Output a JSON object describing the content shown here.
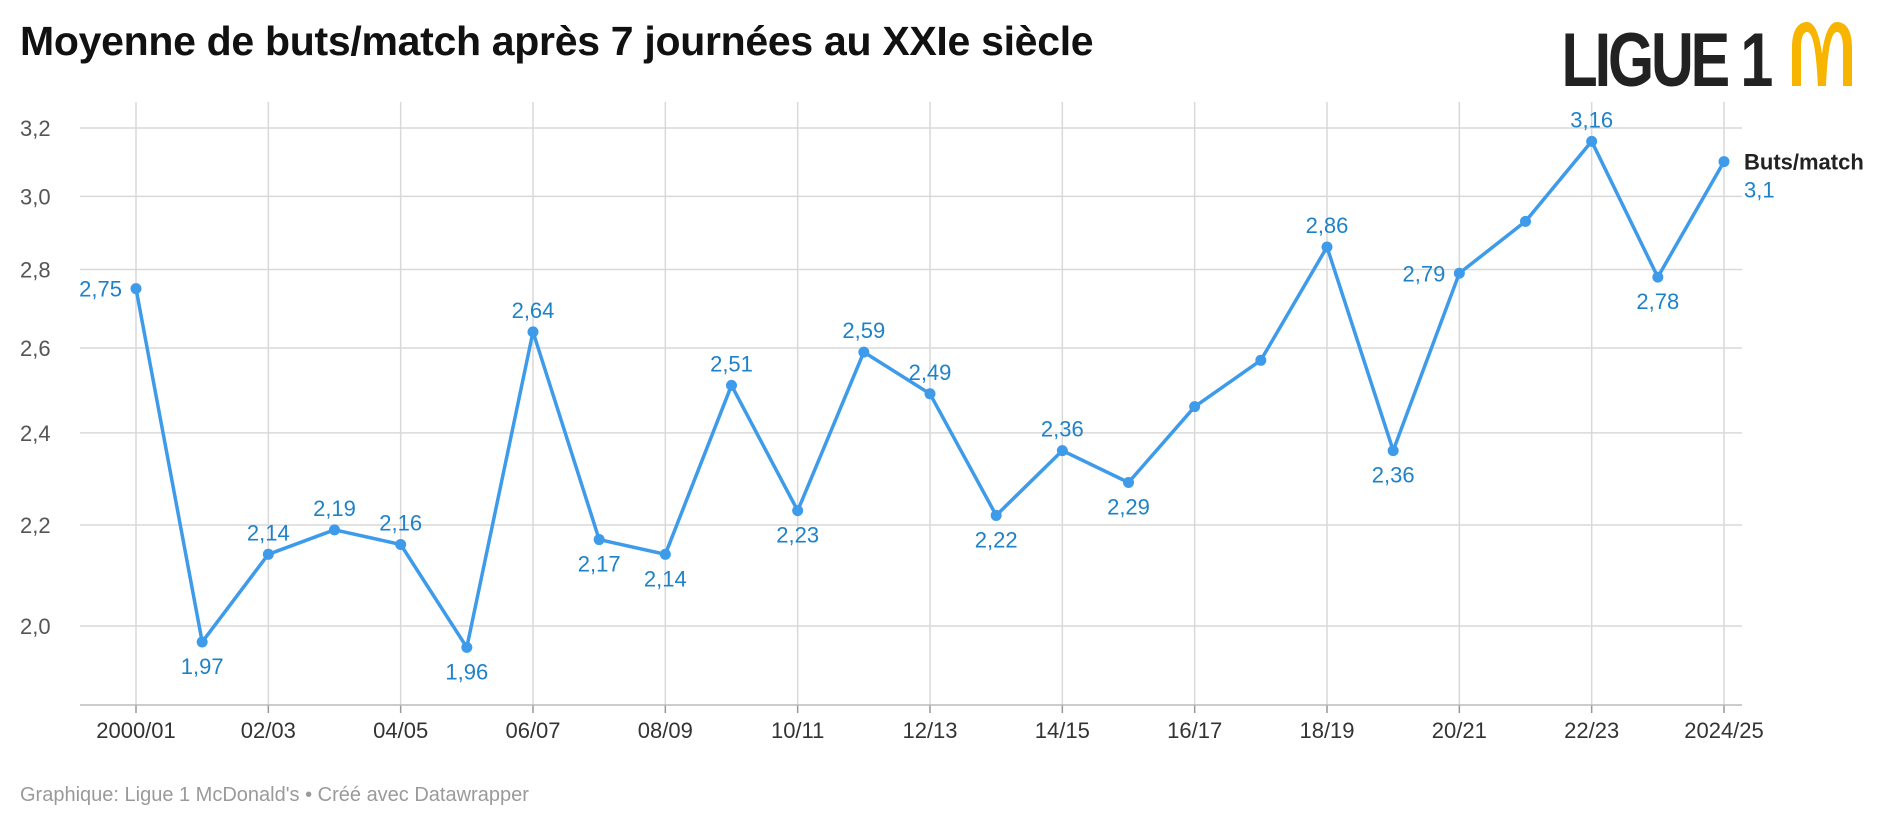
{
  "header": {
    "title": "Moyenne de buts/match après 7 journées au XXIe siècle",
    "logo_text": "LIGUE 1",
    "logo_sponsor": "McDonald's"
  },
  "footer": {
    "source": "Graphique: Ligue 1 McDonald's • Créé avec Datawrapper"
  },
  "colors": {
    "line": "#3d9be9",
    "label": "#1e82c8",
    "grid": "#d9d9d9",
    "axis_text": "#555555",
    "title": "#111111",
    "logo_dark": "#222222",
    "logo_yellow": "#f7b500"
  },
  "chart_data": {
    "type": "line",
    "title": "Moyenne de buts/match après 7 journées au XXIe siècle",
    "xlabel": "",
    "ylabel": "",
    "yscale": "log",
    "ylim": [
      1.9,
      3.25
    ],
    "yticks": [
      2.0,
      2.2,
      2.4,
      2.6,
      2.8,
      3.0,
      3.2
    ],
    "ytick_labels": [
      "2,0",
      "2,2",
      "2,4",
      "2,6",
      "2,8",
      "3,0",
      "3,2"
    ],
    "grid": true,
    "legend_position": "right-end-label",
    "x": [
      "2000/01",
      "01/02",
      "02/03",
      "03/04",
      "04/05",
      "05/06",
      "06/07",
      "07/08",
      "08/09",
      "09/10",
      "10/11",
      "11/12",
      "12/13",
      "13/14",
      "14/15",
      "15/16",
      "16/17",
      "17/18",
      "18/19",
      "19/20",
      "20/21",
      "21/22",
      "22/23",
      "23/24",
      "2024/25"
    ],
    "xtick_labels": [
      "2000/01",
      "02/03",
      "04/05",
      "06/07",
      "08/09",
      "10/11",
      "12/13",
      "14/15",
      "16/17",
      "18/19",
      "20/21",
      "22/23",
      "2024/25"
    ],
    "series": [
      {
        "name": "Buts/match",
        "values": [
          2.75,
          1.97,
          2.14,
          2.19,
          2.16,
          1.96,
          2.64,
          2.17,
          2.14,
          2.51,
          2.23,
          2.59,
          2.49,
          2.22,
          2.36,
          2.29,
          2.46,
          2.57,
          2.86,
          2.36,
          2.79,
          2.93,
          3.16,
          2.78,
          3.1
        ]
      }
    ],
    "annotations": [
      {
        "index": 0,
        "text": "2,75",
        "pos": "left"
      },
      {
        "index": 1,
        "text": "1,97",
        "pos": "below"
      },
      {
        "index": 2,
        "text": "2,14",
        "pos": "above"
      },
      {
        "index": 3,
        "text": "2,19",
        "pos": "above"
      },
      {
        "index": 4,
        "text": "2,16",
        "pos": "above"
      },
      {
        "index": 5,
        "text": "1,96",
        "pos": "below"
      },
      {
        "index": 6,
        "text": "2,64",
        "pos": "above"
      },
      {
        "index": 7,
        "text": "2,17",
        "pos": "below"
      },
      {
        "index": 8,
        "text": "2,14",
        "pos": "below"
      },
      {
        "index": 9,
        "text": "2,51",
        "pos": "above"
      },
      {
        "index": 10,
        "text": "2,23",
        "pos": "below"
      },
      {
        "index": 11,
        "text": "2,59",
        "pos": "above"
      },
      {
        "index": 12,
        "text": "2,49",
        "pos": "above"
      },
      {
        "index": 13,
        "text": "2,22",
        "pos": "below"
      },
      {
        "index": 14,
        "text": "2,36",
        "pos": "above"
      },
      {
        "index": 15,
        "text": "2,29",
        "pos": "below"
      },
      {
        "index": 18,
        "text": "2,86",
        "pos": "above"
      },
      {
        "index": 19,
        "text": "2,36",
        "pos": "below"
      },
      {
        "index": 20,
        "text": "2,79",
        "pos": "left"
      },
      {
        "index": 22,
        "text": "3,16",
        "pos": "above"
      },
      {
        "index": 23,
        "text": "2,78",
        "pos": "below"
      },
      {
        "index": 24,
        "text": "3,1",
        "pos": "right-below"
      }
    ],
    "end_label": {
      "series": "Buts/match",
      "value": "3,1"
    }
  }
}
